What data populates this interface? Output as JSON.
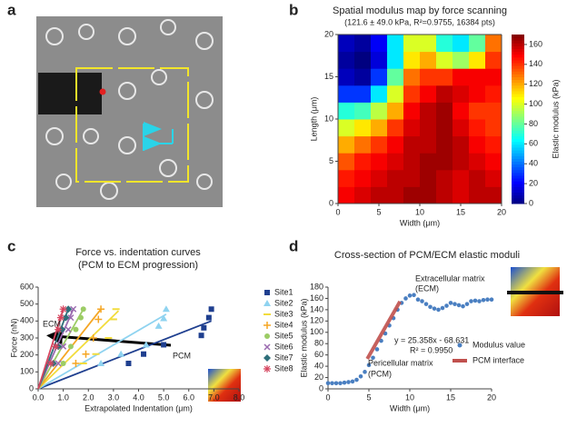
{
  "panel_labels": [
    "a",
    "b",
    "c",
    "d"
  ],
  "chart_data": [
    {
      "type": "heatmap",
      "title": "Spatial modulus map by force scanning",
      "subtitle": "(121.6 ± 49.0 kPa, R²=0.9755, 16384 pts)",
      "xlabel": "Width (μm)",
      "ylabel": "Length (μm)",
      "colorbar_label": "Elastic modulus (kPa)",
      "xlim": [
        0,
        20
      ],
      "xticks": [
        0,
        5,
        10,
        15,
        20
      ],
      "ylim": [
        0,
        20
      ],
      "yticks": [
        0,
        5,
        10,
        15,
        20
      ],
      "clim": [
        0,
        170
      ],
      "cticks": [
        0,
        20,
        40,
        60,
        80,
        100,
        120,
        140,
        160
      ],
      "colormap": "jet",
      "x": [
        1,
        3,
        5,
        7,
        9,
        11,
        13,
        15,
        17,
        19
      ],
      "y": [
        1,
        3,
        5,
        7,
        9,
        11,
        13,
        15,
        17,
        19
      ],
      "z": [
        [
          150,
          155,
          160,
          160,
          165,
          165,
          160,
          155,
          160,
          160
        ],
        [
          145,
          150,
          155,
          160,
          160,
          165,
          160,
          155,
          160,
          155
        ],
        [
          135,
          145,
          150,
          155,
          160,
          165,
          165,
          160,
          155,
          150
        ],
        [
          120,
          130,
          140,
          150,
          160,
          160,
          165,
          160,
          150,
          145
        ],
        [
          100,
          110,
          120,
          140,
          155,
          160,
          165,
          155,
          145,
          140
        ],
        [
          70,
          75,
          95,
          120,
          150,
          160,
          165,
          150,
          140,
          140
        ],
        [
          30,
          30,
          60,
          100,
          140,
          150,
          160,
          155,
          150,
          145
        ],
        [
          10,
          5,
          30,
          80,
          130,
          140,
          140,
          150,
          150,
          150
        ],
        [
          5,
          0,
          15,
          60,
          110,
          120,
          100,
          90,
          110,
          140
        ],
        [
          10,
          5,
          20,
          60,
          100,
          100,
          70,
          60,
          80,
          130
        ]
      ]
    },
    {
      "type": "scatter",
      "title": "Force vs. indentation curves",
      "subtitle": "(PCM to ECM progression)",
      "xlabel": "Extrapolated Indentation (μm)",
      "ylabel": "Force (nN)",
      "xlim": [
        0,
        8
      ],
      "xticks": [
        {
          "value": 0,
          "label": "0.0"
        },
        {
          "value": 1,
          "label": "1.0"
        },
        {
          "value": 2,
          "label": "2.0"
        },
        {
          "value": 3,
          "label": "3.0"
        },
        {
          "value": 4,
          "label": "4.0"
        },
        {
          "value": 5,
          "label": "5.0"
        },
        {
          "value": 6,
          "label": "6.0"
        },
        {
          "value": 7,
          "label": "7.0"
        },
        {
          "value": 8,
          "label": "8.0"
        }
      ],
      "ylim": [
        0,
        600
      ],
      "yticks": [
        0,
        100,
        200,
        300,
        400,
        500,
        600
      ],
      "legend": "right",
      "annotations": [
        "ECM",
        "PCM"
      ],
      "series": [
        {
          "name": "Site1",
          "color": "#1f3f8f",
          "marker": "square",
          "x": [
            3.6,
            4.2,
            5.0,
            6.5,
            6.6,
            6.8,
            6.9
          ],
          "values": [
            150,
            205,
            260,
            315,
            360,
            420,
            470
          ],
          "fit": {
            "x": [
              0,
              6.9
            ],
            "values": [
              0,
              400
            ]
          }
        },
        {
          "name": "Site2",
          "color": "#8fd3f0",
          "marker": "triangle",
          "x": [
            2.5,
            3.3,
            4.3,
            4.8,
            5.0,
            5.1
          ],
          "values": [
            150,
            205,
            260,
            370,
            415,
            470
          ],
          "fit": {
            "x": [
              0,
              5.1
            ],
            "values": [
              0,
              440
            ]
          }
        },
        {
          "name": "Site3",
          "color": "#f2dc3c",
          "marker": "dash",
          "x": [
            1.8,
            2.3,
            2.8,
            3.0,
            3.1
          ],
          "values": [
            150,
            205,
            300,
            410,
            470
          ],
          "fit": {
            "x": [
              0,
              3.2
            ],
            "values": [
              0,
              460
            ]
          }
        },
        {
          "name": "Site4",
          "color": "#f5a623",
          "marker": "plus",
          "x": [
            1.5,
            1.9,
            2.2,
            2.4,
            2.5
          ],
          "values": [
            150,
            205,
            300,
            410,
            470
          ],
          "fit": {
            "x": [
              0,
              2.5
            ],
            "values": [
              0,
              470
            ]
          }
        },
        {
          "name": "Site5",
          "color": "#9ccc65",
          "marker": "circle",
          "x": [
            1.0,
            1.3,
            1.5,
            1.7,
            1.8
          ],
          "values": [
            150,
            250,
            350,
            420,
            470
          ],
          "fit": {
            "x": [
              0,
              1.8
            ],
            "values": [
              0,
              470
            ]
          }
        },
        {
          "name": "Site6",
          "color": "#9b6bb0",
          "marker": "x",
          "x": [
            0.8,
            1.0,
            1.2,
            1.3,
            1.4
          ],
          "values": [
            150,
            250,
            350,
            420,
            470
          ],
          "fit": {
            "x": [
              0,
              1.4
            ],
            "values": [
              0,
              470
            ]
          }
        },
        {
          "name": "Site7",
          "color": "#2e6f7a",
          "marker": "diamond",
          "x": [
            0.6,
            0.8,
            0.95,
            1.1,
            1.2
          ],
          "values": [
            150,
            250,
            350,
            420,
            470
          ],
          "fit": {
            "x": [
              0,
              1.2
            ],
            "values": [
              0,
              470
            ]
          }
        },
        {
          "name": "Site8",
          "color": "#d6455f",
          "marker": "star",
          "x": [
            0.5,
            0.7,
            0.8,
            0.9,
            1.0
          ],
          "values": [
            150,
            250,
            350,
            420,
            470
          ],
          "fit": {
            "x": [
              0,
              1.0
            ],
            "values": [
              0,
              470
            ]
          }
        }
      ]
    },
    {
      "type": "line",
      "title": "Cross-section of PCM/ECM elastic moduli",
      "xlabel": "Width (μm)",
      "ylabel": "Elastic modulus (kPa)",
      "xlim": [
        0,
        20
      ],
      "xticks": [
        0,
        5,
        10,
        15,
        20
      ],
      "ylim": [
        0,
        180
      ],
      "yticks": [
        0,
        20,
        40,
        60,
        80,
        100,
        120,
        140,
        160,
        180
      ],
      "legend": "right",
      "annotations": [
        "Extracellular matrix",
        "(ECM)",
        "y = 25.358x - 68.631",
        "R² = 0.9950",
        "Pericellular matrix",
        "(PCM)"
      ],
      "series": [
        {
          "name": "Modulus value",
          "color": "#4a7fc1",
          "marker": "circle",
          "x": [
            0,
            0.5,
            1,
            1.5,
            2,
            2.5,
            3,
            3.5,
            4,
            4.5,
            5,
            5.5,
            6,
            6.5,
            7,
            7.5,
            8,
            8.5,
            9,
            9.5,
            10,
            10.5,
            11,
            11.5,
            12,
            12.5,
            13,
            13.5,
            14,
            14.5,
            15,
            15.5,
            16,
            16.5,
            17,
            17.5,
            18,
            18.5,
            19,
            19.5,
            20
          ],
          "values": [
            10,
            10,
            10,
            10,
            11,
            12,
            13,
            16,
            22,
            30,
            42,
            55,
            70,
            85,
            98,
            112,
            125,
            140,
            152,
            160,
            165,
            166,
            158,
            155,
            150,
            145,
            142,
            140,
            143,
            147,
            152,
            150,
            148,
            146,
            150,
            155,
            156,
            155,
            157,
            158,
            158
          ]
        },
        {
          "name": "PCM interface",
          "color": "#c0504d",
          "marker": "none",
          "x": [
            4.8,
            8.8
          ],
          "values": [
            53.1,
            154.5
          ]
        }
      ]
    }
  ]
}
